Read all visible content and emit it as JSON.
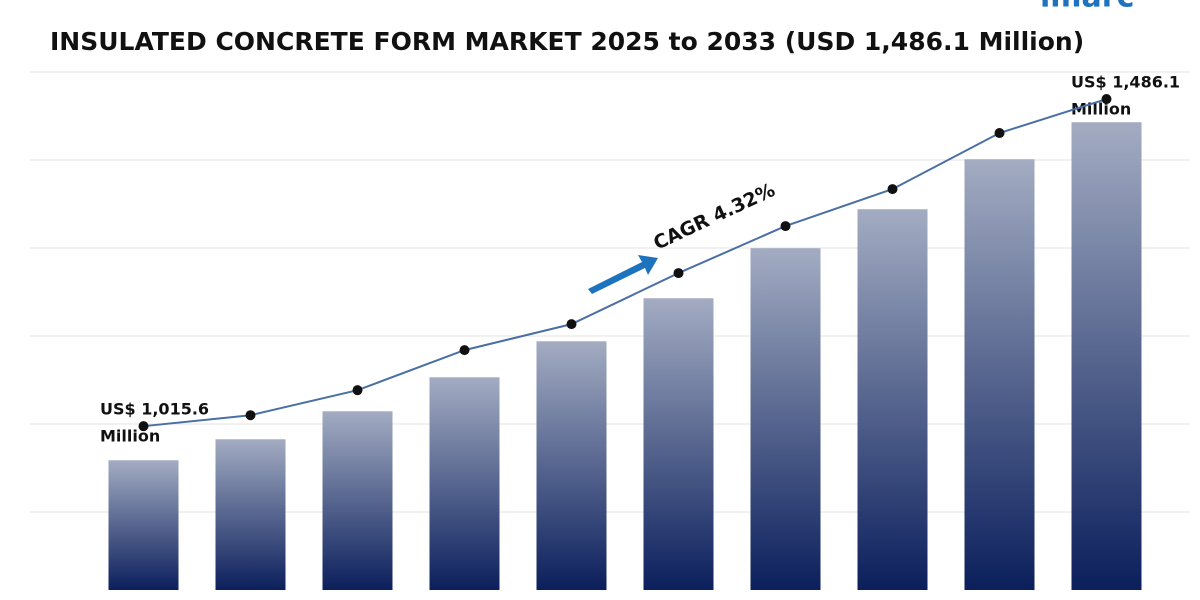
{
  "chart_data": {
    "type": "bar",
    "title": "INSULATED CONCRETE FORM MARKET 2025 to 2033 (USD 1,486.1 Million)",
    "logo": "imarc",
    "categories": [
      null,
      null,
      null,
      null,
      null,
      null,
      null,
      null,
      null,
      null
    ],
    "values": [
      1015.6,
      1044.8,
      1083.8,
      1131.1,
      1181.2,
      1241.1,
      1310.7,
      1365.0,
      1434.6,
      1486.1
    ],
    "color": "#0b1f5c",
    "ylim": [
      835,
      1556
    ],
    "line": {
      "color": "#4a6fa5",
      "values": [
        1015.6,
        1031.4,
        1067.4,
        1125.0,
        1162.4,
        1235.8,
        1303.4,
        1356.6,
        1437.2,
        1486.1
      ],
      "y2lim": [
        780,
        1525
      ]
    },
    "annotations": {
      "start": [
        "US$ 1,015.6",
        "Million"
      ],
      "end": [
        "US$ 1,486.1",
        "Million"
      ],
      "cagr": "CAGR 4.32%"
    }
  }
}
